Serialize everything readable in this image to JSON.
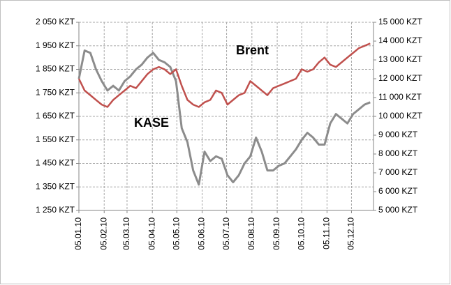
{
  "chart_data": {
    "type": "line",
    "annotations": [
      {
        "text": "Brent",
        "series": 1
      },
      {
        "text": "KASE",
        "series": 0
      }
    ],
    "x": [
      0,
      7,
      14,
      21,
      28,
      35,
      42,
      49,
      56,
      63,
      70,
      77,
      84,
      91,
      98,
      105,
      112,
      119,
      126,
      133,
      140,
      147,
      154,
      161,
      168,
      175,
      182,
      189,
      196,
      203,
      210,
      217,
      224,
      231,
      238,
      245,
      252,
      259,
      266,
      273,
      280,
      287,
      294,
      301,
      308,
      315,
      322,
      329,
      336,
      343,
      350,
      357
    ],
    "xlim": [
      0,
      361
    ],
    "xticks": [
      {
        "value": 0,
        "label": "05.01.10"
      },
      {
        "value": 31,
        "label": "05.02.10"
      },
      {
        "value": 59,
        "label": "05.03.10"
      },
      {
        "value": 90,
        "label": "05.04.10"
      },
      {
        "value": 120,
        "label": "05.05.10"
      },
      {
        "value": 151,
        "label": "05.06.10"
      },
      {
        "value": 181,
        "label": "05.07.10"
      },
      {
        "value": 212,
        "label": "05.08.10"
      },
      {
        "value": 243,
        "label": "05.09.10"
      },
      {
        "value": 273,
        "label": "05.10.10"
      },
      {
        "value": 304,
        "label": "05.11.10"
      },
      {
        "value": 334,
        "label": "05.12.10"
      }
    ],
    "ylim": [
      1250,
      2050
    ],
    "yticks": [
      {
        "value": 1250,
        "label": "1 250 KZT"
      },
      {
        "value": 1350,
        "label": "1 350 KZT"
      },
      {
        "value": 1450,
        "label": "1 450 KZT"
      },
      {
        "value": 1550,
        "label": "1 550 KZT"
      },
      {
        "value": 1650,
        "label": "1 650 KZT"
      },
      {
        "value": 1750,
        "label": "1 750 KZT"
      },
      {
        "value": 1850,
        "label": "1 850 KZT"
      },
      {
        "value": 1950,
        "label": "1 950 KZT"
      },
      {
        "value": 2050,
        "label": "2 050 KZT"
      }
    ],
    "y2lim": [
      5000,
      15000
    ],
    "y2ticks": [
      {
        "value": 5000,
        "label": "5 000 KZT"
      },
      {
        "value": 6000,
        "label": "6 000 KZT"
      },
      {
        "value": 7000,
        "label": "7 000 KZT"
      },
      {
        "value": 8000,
        "label": "8 000 KZT"
      },
      {
        "value": 9000,
        "label": "9 000 KZT"
      },
      {
        "value": 10000,
        "label": "10 000 KZT"
      },
      {
        "value": 11000,
        "label": "11 000 KZT"
      },
      {
        "value": 12000,
        "label": "12 000 KZT"
      },
      {
        "value": 13000,
        "label": "13 000 KZT"
      },
      {
        "value": 14000,
        "label": "14 000 KZT"
      },
      {
        "value": 15000,
        "label": "15 000 KZT"
      }
    ],
    "grid": true,
    "series": [
      {
        "name": "KASE",
        "color": "#8c8c8c",
        "axis": "y",
        "values": [
          1810,
          1930,
          1920,
          1850,
          1800,
          1760,
          1780,
          1760,
          1800,
          1820,
          1850,
          1870,
          1900,
          1920,
          1890,
          1880,
          1860,
          1800,
          1600,
          1540,
          1420,
          1360,
          1500,
          1460,
          1480,
          1470,
          1400,
          1370,
          1400,
          1450,
          1480,
          1560,
          1500,
          1420,
          1420,
          1440,
          1450,
          1480,
          1510,
          1550,
          1580,
          1560,
          1530,
          1530,
          1620,
          1660,
          1640,
          1620,
          1660,
          1680,
          1700,
          1710
        ]
      },
      {
        "name": "Brent",
        "color": "#c0504d",
        "axis": "y2",
        "values": [
          12000,
          11375,
          11125,
          10875,
          10625,
          10500,
          10875,
          11125,
          11375,
          11625,
          11500,
          11875,
          12250,
          12500,
          12625,
          12500,
          12250,
          12500,
          11625,
          10875,
          10625,
          10500,
          10750,
          10875,
          11375,
          11250,
          10625,
          10875,
          11125,
          11250,
          11875,
          11625,
          11375,
          11125,
          11500,
          11625,
          11750,
          11875,
          12000,
          12500,
          12375,
          12500,
          12875,
          13125,
          12750,
          12625,
          12875,
          13125,
          13375,
          13625,
          13750,
          13875
        ]
      }
    ]
  }
}
